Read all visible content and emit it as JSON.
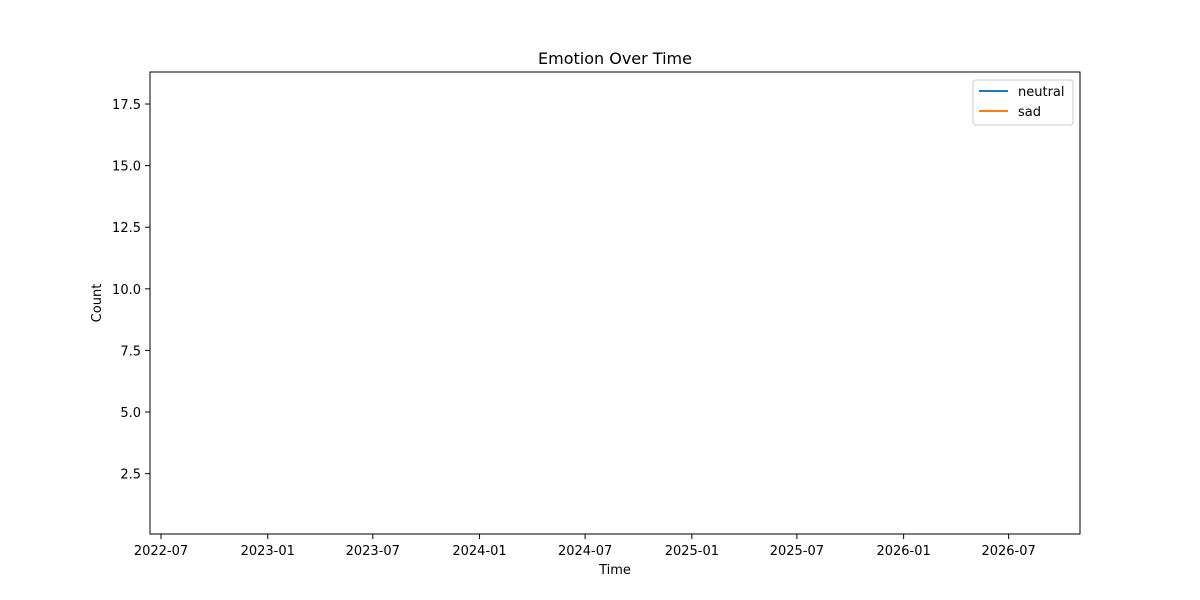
{
  "chart_data": {
    "type": "line",
    "title": "Emotion Over Time",
    "xlabel": "Time",
    "ylabel": "Count",
    "x_ticks": [
      "2022-07",
      "2023-01",
      "2023-07",
      "2024-01",
      "2024-07",
      "2025-01",
      "2025-07",
      "2026-01",
      "2026-07"
    ],
    "y_ticks": [
      "2.5",
      "5.0",
      "7.5",
      "10.0",
      "12.5",
      "15.0",
      "17.5"
    ],
    "xlim": [
      "2022-06-12",
      "2026-11-01"
    ],
    "ylim": [
      0.05,
      18.8
    ],
    "grid": false,
    "legend_position": "top-right",
    "series": [
      {
        "name": "neutral",
        "color": "#1f77b4",
        "points": []
      },
      {
        "name": "sad",
        "color": "#ff7f0e",
        "points": []
      }
    ]
  }
}
